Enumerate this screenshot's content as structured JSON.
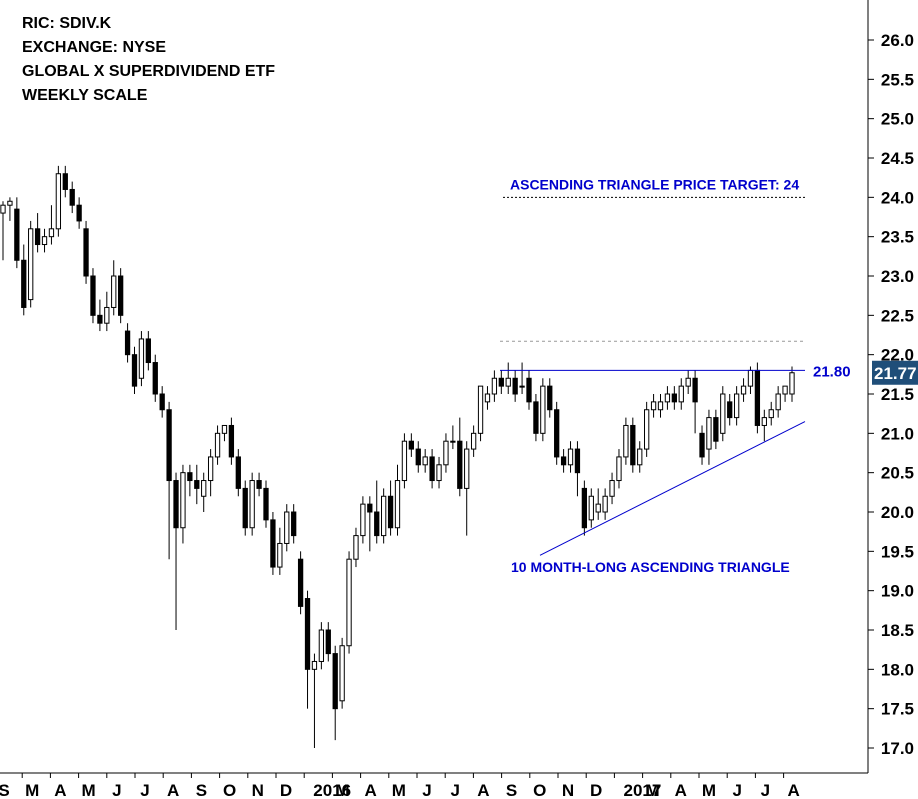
{
  "chart_data": {
    "type": "candlestick",
    "info_lines": [
      "RIC: SDIV.K",
      "EXCHANGE: NYSE",
      "GLOBAL X SUPERDIVIDEND ETF",
      "WEEKLY SCALE"
    ],
    "y_ticks": [
      "26.0",
      "25.5",
      "25.0",
      "24.5",
      "24.0",
      "23.5",
      "23.0",
      "22.5",
      "22.0",
      "21.5",
      "21.0",
      "20.5",
      "20.0",
      "19.5",
      "19.0",
      "18.5",
      "18.0",
      "17.5",
      "17.0"
    ],
    "ylim": [
      16.5,
      26.3
    ],
    "x_labels": [
      "S",
      "M",
      "A",
      "M",
      "J",
      "J",
      "A",
      "S",
      "O",
      "N",
      "D",
      "2016",
      "M",
      "A",
      "M",
      "J",
      "J",
      "A",
      "S",
      "O",
      "N",
      "D",
      "2017",
      "M",
      "A",
      "M",
      "J",
      "J",
      "A"
    ],
    "last_price_label": "21.77",
    "last_price": 21.77,
    "resistance": {
      "value": 21.8,
      "label": "21.80"
    },
    "target": {
      "value": 24.0,
      "label": "ASCENDING TRIANGLE PRICE TARGET: 24"
    },
    "upper_dashed_level": 22.17,
    "support_line": {
      "start_value": 19.45,
      "end_value": 21.15
    },
    "pattern_label": "10 MONTH-LONG ASCENDING TRIANGLE",
    "colors": {
      "annotation": "#0000cc",
      "price_box": "#1f4e79",
      "bull": "#ffffff",
      "bear": "#000000"
    },
    "candles": [
      [
        23.8,
        23.9,
        23.3,
        23.2,
        23.95
      ],
      [
        23.9,
        23.95,
        23.85,
        23.7,
        24.0
      ],
      [
        23.85,
        23.2,
        23.9,
        23.1,
        24.0
      ],
      [
        23.2,
        22.6,
        23.25,
        22.5,
        23.4
      ],
      [
        22.7,
        23.6,
        22.7,
        22.6,
        23.7
      ],
      [
        23.6,
        23.4,
        23.7,
        23.3,
        23.8
      ],
      [
        23.4,
        23.5,
        23.4,
        23.3,
        23.6
      ],
      [
        23.5,
        23.6,
        23.5,
        23.4,
        23.9
      ],
      [
        23.6,
        24.3,
        23.6,
        23.5,
        24.4
      ],
      [
        24.3,
        24.1,
        24.35,
        24.0,
        24.4
      ],
      [
        24.1,
        23.9,
        24.15,
        23.8,
        24.2
      ],
      [
        23.9,
        23.7,
        23.95,
        23.6,
        24.0
      ],
      [
        23.6,
        23.0,
        23.65,
        22.9,
        23.7
      ],
      [
        23.0,
        22.5,
        23.05,
        22.4,
        23.1
      ],
      [
        22.5,
        22.4,
        22.55,
        22.3,
        22.7
      ],
      [
        22.4,
        22.6,
        22.4,
        22.3,
        22.8
      ],
      [
        22.6,
        23.0,
        22.6,
        22.5,
        23.2
      ],
      [
        23.0,
        22.5,
        23.05,
        22.4,
        23.1
      ],
      [
        22.3,
        22.0,
        22.35,
        21.9,
        22.4
      ],
      [
        22.0,
        21.6,
        22.05,
        21.5,
        22.1
      ],
      [
        21.7,
        22.2,
        21.7,
        21.6,
        22.3
      ],
      [
        22.2,
        21.9,
        22.25,
        21.8,
        22.3
      ],
      [
        21.9,
        21.5,
        21.95,
        21.4,
        22.0
      ],
      [
        21.5,
        21.3,
        21.55,
        21.2,
        21.6
      ],
      [
        21.3,
        20.4,
        21.35,
        19.4,
        21.4
      ],
      [
        20.4,
        19.8,
        20.45,
        18.5,
        20.5
      ],
      [
        19.8,
        20.5,
        19.8,
        19.6,
        20.6
      ],
      [
        20.5,
        20.4,
        20.5,
        20.2,
        20.6
      ],
      [
        20.4,
        20.3,
        20.5,
        20.1,
        20.6
      ],
      [
        20.2,
        20.4,
        20.2,
        20.0,
        20.5
      ],
      [
        20.4,
        20.7,
        20.4,
        20.2,
        20.8
      ],
      [
        20.7,
        21.0,
        20.7,
        20.6,
        21.1
      ],
      [
        21.0,
        21.1,
        21.0,
        20.9,
        21.1
      ],
      [
        21.1,
        20.7,
        21.15,
        20.6,
        21.2
      ],
      [
        20.7,
        20.3,
        20.75,
        20.2,
        20.8
      ],
      [
        20.3,
        19.8,
        20.35,
        19.7,
        20.4
      ],
      [
        19.8,
        20.4,
        19.8,
        19.7,
        20.5
      ],
      [
        20.4,
        20.3,
        20.45,
        20.2,
        20.5
      ],
      [
        20.3,
        19.9,
        20.35,
        19.8,
        20.4
      ],
      [
        19.9,
        19.3,
        19.95,
        19.2,
        20.0
      ],
      [
        19.3,
        19.6,
        19.3,
        19.2,
        19.8
      ],
      [
        19.6,
        20.0,
        19.6,
        19.5,
        20.1
      ],
      [
        20.0,
        19.7,
        20.05,
        19.6,
        20.1
      ],
      [
        19.4,
        18.8,
        19.45,
        18.7,
        19.5
      ],
      [
        18.9,
        18.0,
        18.95,
        17.5,
        19.0
      ],
      [
        18.0,
        18.1,
        18.0,
        17.0,
        18.2
      ],
      [
        18.1,
        18.5,
        18.1,
        18.0,
        18.6
      ],
      [
        18.5,
        18.2,
        18.55,
        18.1,
        18.6
      ],
      [
        18.2,
        17.5,
        18.25,
        17.1,
        18.3
      ],
      [
        17.6,
        18.3,
        17.6,
        17.5,
        18.4
      ],
      [
        18.3,
        19.4,
        18.3,
        18.2,
        19.5
      ],
      [
        19.4,
        19.7,
        19.4,
        19.3,
        19.8
      ],
      [
        19.7,
        20.1,
        19.7,
        19.6,
        20.2
      ],
      [
        20.1,
        20.0,
        20.15,
        19.5,
        20.2
      ],
      [
        20.0,
        19.7,
        20.05,
        19.6,
        20.4
      ],
      [
        19.7,
        20.2,
        19.7,
        19.6,
        20.3
      ],
      [
        20.2,
        19.8,
        20.25,
        19.7,
        20.4
      ],
      [
        19.8,
        20.4,
        19.8,
        19.7,
        20.6
      ],
      [
        20.4,
        20.9,
        20.4,
        20.3,
        21.0
      ],
      [
        20.9,
        20.8,
        20.95,
        20.7,
        21.0
      ],
      [
        20.8,
        20.6,
        20.85,
        20.5,
        20.9
      ],
      [
        20.6,
        20.7,
        20.6,
        20.5,
        20.8
      ],
      [
        20.7,
        20.4,
        20.75,
        20.3,
        20.8
      ],
      [
        20.4,
        20.6,
        20.4,
        20.3,
        20.7
      ],
      [
        20.6,
        20.9,
        20.6,
        20.5,
        21.0
      ],
      [
        20.9,
        20.9,
        20.9,
        20.8,
        21.1
      ],
      [
        20.9,
        20.3,
        20.95,
        20.2,
        21.2
      ],
      [
        20.3,
        20.8,
        20.3,
        19.7,
        20.9
      ],
      [
        20.8,
        21.0,
        20.8,
        20.7,
        21.1
      ],
      [
        21.0,
        21.6,
        21.0,
        20.9,
        21.6
      ],
      [
        21.4,
        21.5,
        21.4,
        21.3,
        21.6
      ],
      [
        21.5,
        21.7,
        21.5,
        21.4,
        21.8
      ],
      [
        21.7,
        21.6,
        21.75,
        21.5,
        21.8
      ],
      [
        21.6,
        21.7,
        21.6,
        21.5,
        21.9
      ],
      [
        21.7,
        21.5,
        21.75,
        21.4,
        21.8
      ],
      [
        21.6,
        21.6,
        21.65,
        21.5,
        21.9
      ],
      [
        21.7,
        21.4,
        21.75,
        21.3,
        21.8
      ],
      [
        21.4,
        21.0,
        21.45,
        20.9,
        21.5
      ],
      [
        21.0,
        21.6,
        21.0,
        20.9,
        21.7
      ],
      [
        21.6,
        21.3,
        21.6,
        21.2,
        21.7
      ],
      [
        21.3,
        20.7,
        21.35,
        20.6,
        21.4
      ],
      [
        20.7,
        20.6,
        20.75,
        20.5,
        20.8
      ],
      [
        20.6,
        20.8,
        20.6,
        20.5,
        20.9
      ],
      [
        20.8,
        20.5,
        20.85,
        20.2,
        20.9
      ],
      [
        20.3,
        19.8,
        20.35,
        19.7,
        20.4
      ],
      [
        19.9,
        20.2,
        19.9,
        19.8,
        20.3
      ],
      [
        20.0,
        20.1,
        20.0,
        19.9,
        20.3
      ],
      [
        20.0,
        20.2,
        20.0,
        19.9,
        20.3
      ],
      [
        20.2,
        20.4,
        20.2,
        20.1,
        20.5
      ],
      [
        20.4,
        20.7,
        20.4,
        20.3,
        20.8
      ],
      [
        20.7,
        21.1,
        20.7,
        20.6,
        21.2
      ],
      [
        21.1,
        20.6,
        21.15,
        20.5,
        21.2
      ],
      [
        20.6,
        20.8,
        20.6,
        20.5,
        20.9
      ],
      [
        20.8,
        21.3,
        20.8,
        20.7,
        21.4
      ],
      [
        21.3,
        21.4,
        21.3,
        21.2,
        21.5
      ],
      [
        21.3,
        21.4,
        21.3,
        21.2,
        21.5
      ],
      [
        21.4,
        21.5,
        21.4,
        21.3,
        21.6
      ],
      [
        21.5,
        21.4,
        21.55,
        21.3,
        21.6
      ],
      [
        21.4,
        21.6,
        21.4,
        21.3,
        21.7
      ],
      [
        21.6,
        21.7,
        21.6,
        21.5,
        21.8
      ],
      [
        21.7,
        21.4,
        21.75,
        21.0,
        21.8
      ],
      [
        21.0,
        20.7,
        21.05,
        20.6,
        21.1
      ],
      [
        20.8,
        21.2,
        20.8,
        20.6,
        21.3
      ],
      [
        21.2,
        20.9,
        21.25,
        20.8,
        21.3
      ],
      [
        21.0,
        21.5,
        21.0,
        20.9,
        21.6
      ],
      [
        21.4,
        21.2,
        21.45,
        21.1,
        21.5
      ],
      [
        21.2,
        21.5,
        21.2,
        21.1,
        21.6
      ],
      [
        21.5,
        21.6,
        21.5,
        21.4,
        21.7
      ],
      [
        21.6,
        21.8,
        21.6,
        21.5,
        21.85
      ],
      [
        21.8,
        21.1,
        21.85,
        21.0,
        21.9
      ],
      [
        21.1,
        21.2,
        21.1,
        20.9,
        21.3
      ],
      [
        21.2,
        21.3,
        21.2,
        21.1,
        21.4
      ],
      [
        21.3,
        21.5,
        21.3,
        21.2,
        21.6
      ],
      [
        21.5,
        21.6,
        21.5,
        21.4,
        21.6
      ],
      [
        21.5,
        21.77,
        21.5,
        21.4,
        21.85
      ]
    ]
  }
}
